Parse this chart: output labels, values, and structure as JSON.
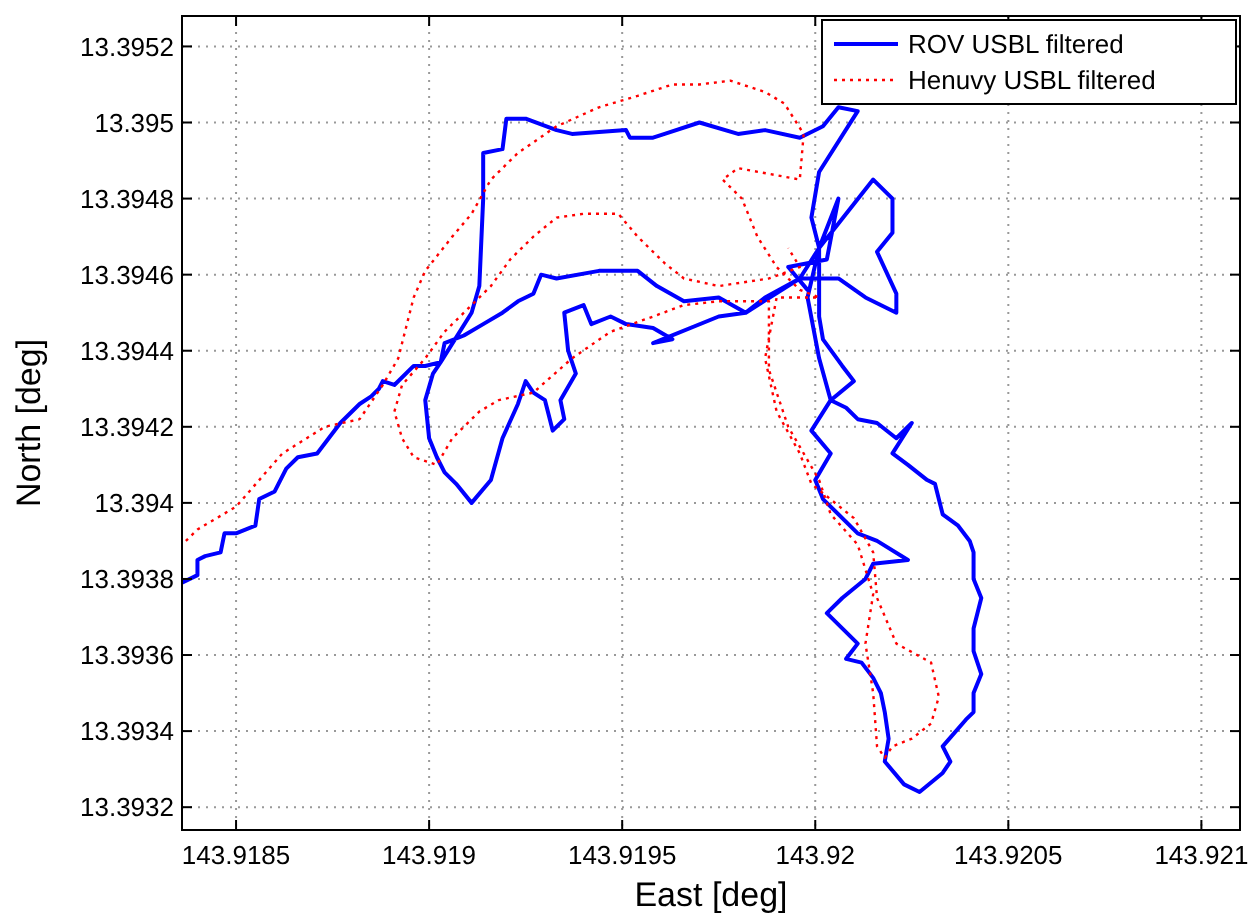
{
  "chart_data": {
    "type": "line",
    "xlabel": "East [deg]",
    "ylabel": "North [deg]",
    "xlim": [
      143.91836,
      143.9211
    ],
    "ylim": [
      13.39314,
      13.39528
    ],
    "xticks": [
      143.9185,
      143.919,
      143.9195,
      143.92,
      143.9205,
      143.921
    ],
    "yticks": [
      13.3932,
      13.3934,
      13.3936,
      13.3938,
      13.394,
      13.3942,
      13.3944,
      13.3946,
      13.3948,
      13.395,
      13.3952
    ],
    "grid": true,
    "legend": "top right",
    "marker": "none",
    "series": [
      {
        "name": "ROV USBL filtered",
        "color": "#0000ff",
        "line_style": "solid",
        "x": [
          143.91836,
          143.9184,
          143.9184,
          143.91842,
          143.91846,
          143.91847,
          143.9185,
          143.91855,
          143.91856,
          143.9186,
          143.91863,
          143.91866,
          143.91871,
          143.91874,
          143.91877,
          143.91882,
          143.91885,
          143.91887,
          143.91888,
          143.91891,
          143.91896,
          143.91899,
          143.91903,
          143.91911,
          143.91913,
          143.91914,
          143.91914,
          143.91919,
          143.9192,
          143.91925,
          143.91933,
          143.91937,
          143.91951,
          143.91952,
          143.91958,
          143.91961,
          143.9197,
          143.9198,
          143.91987,
          143.91996,
          143.92002,
          143.92006,
          143.92011,
          143.92001,
          143.91999,
          143.92001,
          143.92015,
          143.9202,
          143.9202,
          143.92016,
          143.92021,
          143.92021,
          143.92013,
          143.92006,
          143.91996,
          143.91987,
          143.91982,
          143.91975,
          143.91966,
          143.91959,
          143.91954,
          143.91944,
          143.91933,
          143.91929,
          143.91927,
          143.91923,
          143.91919,
          143.91914,
          143.91909,
          143.91904,
          143.91903,
          143.91901,
          143.91899,
          143.919,
          143.91902,
          143.91904,
          143.91907,
          143.91911,
          143.91916,
          143.91919,
          143.91923,
          143.91925,
          143.91927,
          143.9193,
          143.91932,
          143.91935,
          143.91934,
          143.91938,
          143.91936,
          143.91935,
          143.9194,
          143.91942,
          143.91947,
          143.91951,
          143.91958,
          143.91963,
          143.91958,
          143.91975,
          143.91982,
          143.91996,
          143.92001,
          143.92001,
          143.92002,
          143.92007,
          143.9201,
          143.92004,
          143.91999,
          143.92004,
          143.92,
          143.92002,
          143.92011,
          143.92016,
          143.92024,
          143.92015,
          143.92013,
          143.92007,
          143.92003,
          143.92007,
          143.92011,
          143.92008,
          143.92012,
          143.92015,
          143.92017,
          143.92018,
          143.92019,
          143.92018,
          143.92023,
          143.92027,
          143.92033,
          143.92035,
          143.92033,
          143.92039,
          143.92041,
          143.92041,
          143.92043,
          143.92041,
          143.92041,
          143.92043,
          143.92041,
          143.92041,
          143.9204,
          143.92037,
          143.92033,
          143.92031,
          143.92029,
          143.92024,
          143.9202,
          143.92025,
          143.92021,
          143.92016,
          143.92011,
          143.92008,
          143.92004,
          143.92001,
          143.91998,
          143.92001,
          143.92006,
          143.92003,
          143.91993,
          143.91998
        ],
        "values": [
          13.39379,
          13.39381,
          13.39385,
          13.39386,
          13.39387,
          13.39392,
          13.39392,
          13.39394,
          13.39401,
          13.39403,
          13.39409,
          13.39412,
          13.39413,
          13.39417,
          13.39421,
          13.39426,
          13.39428,
          13.3943,
          13.39432,
          13.39431,
          13.39436,
          13.39436,
          13.39437,
          13.3945,
          13.39457,
          13.3948,
          13.39492,
          13.39493,
          13.39501,
          13.39501,
          13.39498,
          13.39497,
          13.39498,
          13.39496,
          13.39496,
          13.39497,
          13.395,
          13.39497,
          13.39498,
          13.39496,
          13.39499,
          13.39504,
          13.39503,
          13.39487,
          13.39475,
          13.39467,
          13.39485,
          13.3948,
          13.39471,
          13.39466,
          13.39455,
          13.3945,
          13.39454,
          13.39459,
          13.39459,
          13.39454,
          13.3945,
          13.39454,
          13.39453,
          13.39457,
          13.39461,
          13.39461,
          13.39459,
          13.3946,
          13.39455,
          13.39453,
          13.3945,
          13.39447,
          13.39444,
          13.39442,
          13.39437,
          13.39434,
          13.39427,
          13.39417,
          13.39412,
          13.39408,
          13.39405,
          13.394,
          13.39406,
          13.39417,
          13.39426,
          13.39432,
          13.39429,
          13.39427,
          13.39419,
          13.39422,
          13.39427,
          13.39434,
          13.3944,
          13.3945,
          13.39452,
          13.39447,
          13.39449,
          13.39447,
          13.39446,
          13.39443,
          13.39442,
          13.39449,
          13.3945,
          13.39459,
          13.39467,
          13.39449,
          13.39443,
          13.39436,
          13.39432,
          13.39427,
          13.39419,
          13.39413,
          13.39406,
          13.39401,
          13.39392,
          13.3939,
          13.39385,
          13.39384,
          13.3938,
          13.39375,
          13.39371,
          13.39367,
          13.39363,
          13.39359,
          13.39358,
          13.39354,
          13.3935,
          13.39345,
          13.39338,
          13.39332,
          13.39326,
          13.39324,
          13.39329,
          13.39332,
          13.39336,
          13.39343,
          13.39345,
          13.3935,
          13.39355,
          13.39361,
          13.39367,
          13.39375,
          13.3938,
          13.39387,
          13.3939,
          13.39394,
          13.39397,
          13.39405,
          13.39406,
          13.3941,
          13.39413,
          13.39421,
          13.39417,
          13.39421,
          13.39422,
          13.39425,
          13.39427,
          13.39438,
          13.39454,
          13.39467,
          13.3948,
          13.39464,
          13.39462,
          13.39456
        ]
      },
      {
        "name": "Henuvy USBL filtered",
        "color": "#ff0000",
        "line_style": "dotted",
        "x": [
          143.91837,
          143.9184,
          143.9185,
          143.91862,
          143.91873,
          143.91882,
          143.91888,
          143.91892,
          143.91896,
          143.91899,
          143.91906,
          143.91911,
          143.91916,
          143.91923,
          143.91933,
          143.91944,
          143.91954,
          143.91963,
          143.9197,
          143.91978,
          143.91987,
          143.91992,
          143.91997,
          143.91996,
          143.9198,
          143.91976,
          143.91981,
          143.91985,
          143.9199,
          143.91996,
          143.92001,
          143.9199,
          143.91987,
          143.9199,
          143.91996,
          143.91999,
          143.9201,
          143.92015,
          143.92016,
          143.92021,
          143.9203,
          143.92032,
          143.9203,
          143.92025,
          143.9202,
          143.92018,
          143.92016,
          143.92015,
          143.92013,
          143.92015,
          143.92011,
          143.92004,
          143.92001,
          143.91993,
          143.91988,
          143.91988,
          143.91975,
          143.91966,
          143.91958,
          143.91947,
          143.91937,
          143.91927,
          143.91918,
          143.91913,
          143.91906,
          143.91902,
          143.91896,
          143.91893,
          143.91891,
          143.91893,
          143.91899,
          143.91904,
          143.91909,
          143.91916,
          143.91921,
          143.91927,
          143.91933,
          143.9194,
          143.91949,
          143.91954,
          143.91961,
          143.91966,
          143.91975,
          143.91988,
          143.91996,
          143.91993
        ],
        "values": [
          13.3939,
          13.39393,
          13.39399,
          13.39413,
          13.3942,
          13.39422,
          13.39431,
          13.39438,
          13.39454,
          13.39461,
          13.3947,
          13.39476,
          13.39485,
          13.39492,
          13.39499,
          13.39504,
          13.39507,
          13.3951,
          13.3951,
          13.39511,
          13.39508,
          13.39505,
          13.39497,
          13.39485,
          13.39488,
          13.39485,
          13.3948,
          13.3947,
          13.39462,
          13.39456,
          13.39454,
          13.39454,
          13.39438,
          13.39424,
          13.39413,
          13.39405,
          13.39396,
          13.39387,
          13.39375,
          13.39363,
          13.39358,
          13.39349,
          13.39342,
          13.39338,
          13.39336,
          13.39333,
          13.39336,
          13.3935,
          13.39363,
          13.39376,
          13.39389,
          13.39397,
          13.39406,
          13.3942,
          13.39435,
          13.39453,
          13.39453,
          13.39452,
          13.39449,
          13.39445,
          13.39438,
          13.39429,
          13.39427,
          13.39424,
          13.39417,
          13.3941,
          13.39412,
          13.39417,
          13.39424,
          13.39431,
          13.39438,
          13.39445,
          13.3945,
          13.39457,
          13.39464,
          13.3947,
          13.39475,
          13.39476,
          13.39476,
          13.3947,
          13.39463,
          13.39459,
          13.39457,
          13.39459,
          13.39462,
          13.39467
        ]
      }
    ]
  }
}
